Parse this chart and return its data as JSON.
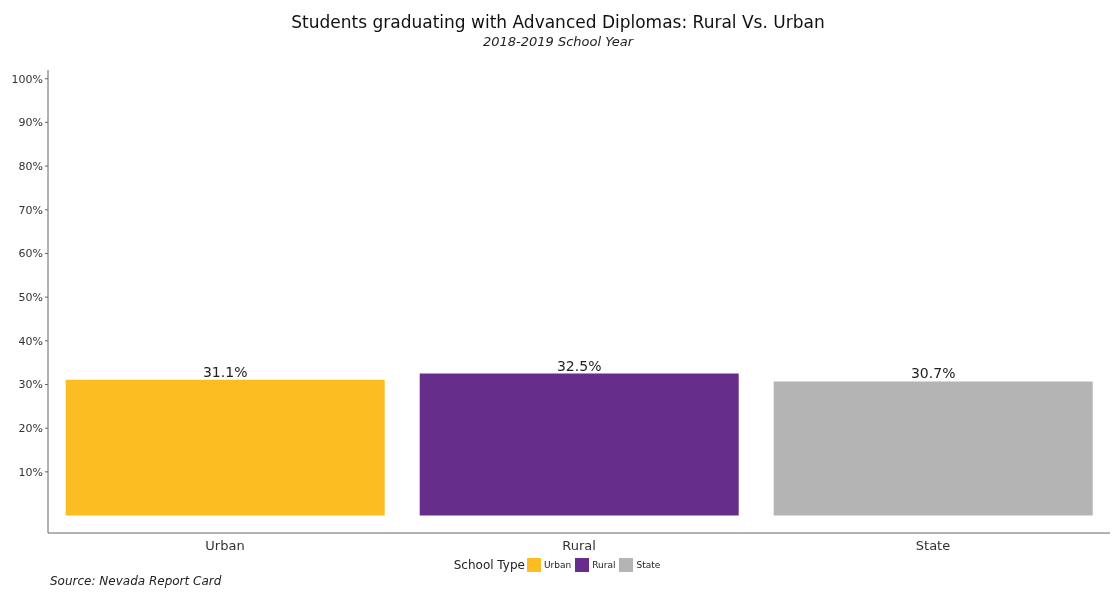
{
  "chart_data": {
    "type": "bar",
    "title": "Students graduating with Advanced Diplomas: Rural Vs. Urban",
    "subtitle": "2018-2019 School Year",
    "categories": [
      "Urban",
      "Rural",
      "State"
    ],
    "stacked": true,
    "series": [
      {
        "name": "Urban",
        "color": "#fbbd22",
        "values": [
          31.1,
          null,
          null
        ],
        "value_labels": [
          "31.1%",
          null,
          null
        ]
      },
      {
        "name": "Rural",
        "color": "#662d8a",
        "values": [
          null,
          32.5,
          null
        ],
        "value_labels": [
          null,
          "32.5%",
          null
        ]
      },
      {
        "name": "State",
        "color": "#b4b4b4",
        "values": [
          null,
          null,
          30.7
        ],
        "value_labels": [
          null,
          null,
          "30.7%"
        ]
      }
    ],
    "ylim": [
      -4,
      102
    ],
    "yticks": [
      {
        "value": 10,
        "label": "10%"
      },
      {
        "value": 20,
        "label": "20%"
      },
      {
        "value": 30,
        "label": "30%"
      },
      {
        "value": 40,
        "label": "40%"
      },
      {
        "value": 50,
        "label": "50%"
      },
      {
        "value": 60,
        "label": "60%"
      },
      {
        "value": 70,
        "label": "70%"
      },
      {
        "value": 80,
        "label": "80%"
      },
      {
        "value": 90,
        "label": "90%"
      },
      {
        "value": 100,
        "label": "100%"
      }
    ],
    "grid": false,
    "legend": "bottom",
    "legend_title": "School Type",
    "annotations": [
      "Source: Nevada Report Card"
    ]
  }
}
